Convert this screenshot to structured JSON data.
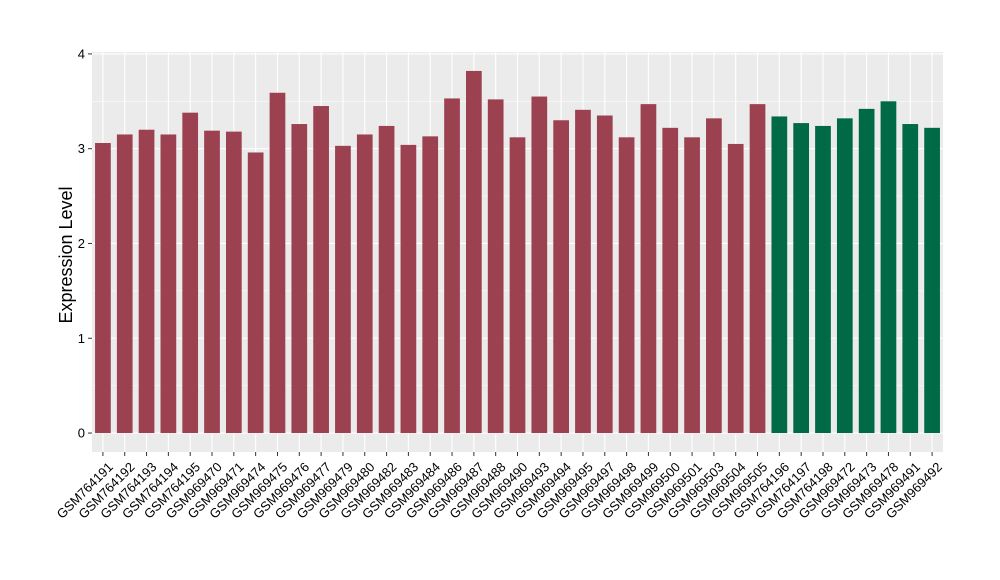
{
  "chart_data": {
    "type": "bar",
    "title": "",
    "xlabel": "",
    "ylabel": "Expression Level",
    "ylim": [
      -0.2,
      4.02
    ],
    "yticks": [
      0,
      1,
      2,
      3,
      4
    ],
    "grid": true,
    "legend": "none",
    "series_colors": {
      "group1": "#9b4150",
      "group2": "#006945"
    },
    "panel_background": "#ebebeb",
    "gridline_color": "#ffffff",
    "categories": [
      "GSM764191",
      "GSM764192",
      "GSM764193",
      "GSM764194",
      "GSM764195",
      "GSM969470",
      "GSM969471",
      "GSM969474",
      "GSM969475",
      "GSM969476",
      "GSM969477",
      "GSM969479",
      "GSM969480",
      "GSM969482",
      "GSM969483",
      "GSM969484",
      "GSM969486",
      "GSM969487",
      "GSM969488",
      "GSM969490",
      "GSM969493",
      "GSM969494",
      "GSM969495",
      "GSM969497",
      "GSM969498",
      "GSM969499",
      "GSM969500",
      "GSM969501",
      "GSM969503",
      "GSM969504",
      "GSM969505",
      "GSM764196",
      "GSM764197",
      "GSM764198",
      "GSM969472",
      "GSM969473",
      "GSM969478",
      "GSM969491",
      "GSM969492"
    ],
    "values": [
      3.06,
      3.15,
      3.2,
      3.15,
      3.38,
      3.19,
      3.18,
      2.96,
      3.59,
      3.26,
      3.45,
      3.03,
      3.15,
      3.24,
      3.04,
      3.13,
      3.53,
      3.82,
      3.52,
      3.12,
      3.55,
      3.3,
      3.41,
      3.35,
      3.12,
      3.47,
      3.22,
      3.12,
      3.32,
      3.05,
      3.47,
      3.34,
      3.27,
      3.24,
      3.32,
      3.42,
      3.5,
      3.26,
      3.22
    ],
    "groups": [
      "group1",
      "group1",
      "group1",
      "group1",
      "group1",
      "group1",
      "group1",
      "group1",
      "group1",
      "group1",
      "group1",
      "group1",
      "group1",
      "group1",
      "group1",
      "group1",
      "group1",
      "group1",
      "group1",
      "group1",
      "group1",
      "group1",
      "group1",
      "group1",
      "group1",
      "group1",
      "group1",
      "group1",
      "group1",
      "group1",
      "group1",
      "group2",
      "group2",
      "group2",
      "group2",
      "group2",
      "group2",
      "group2",
      "group2"
    ]
  }
}
